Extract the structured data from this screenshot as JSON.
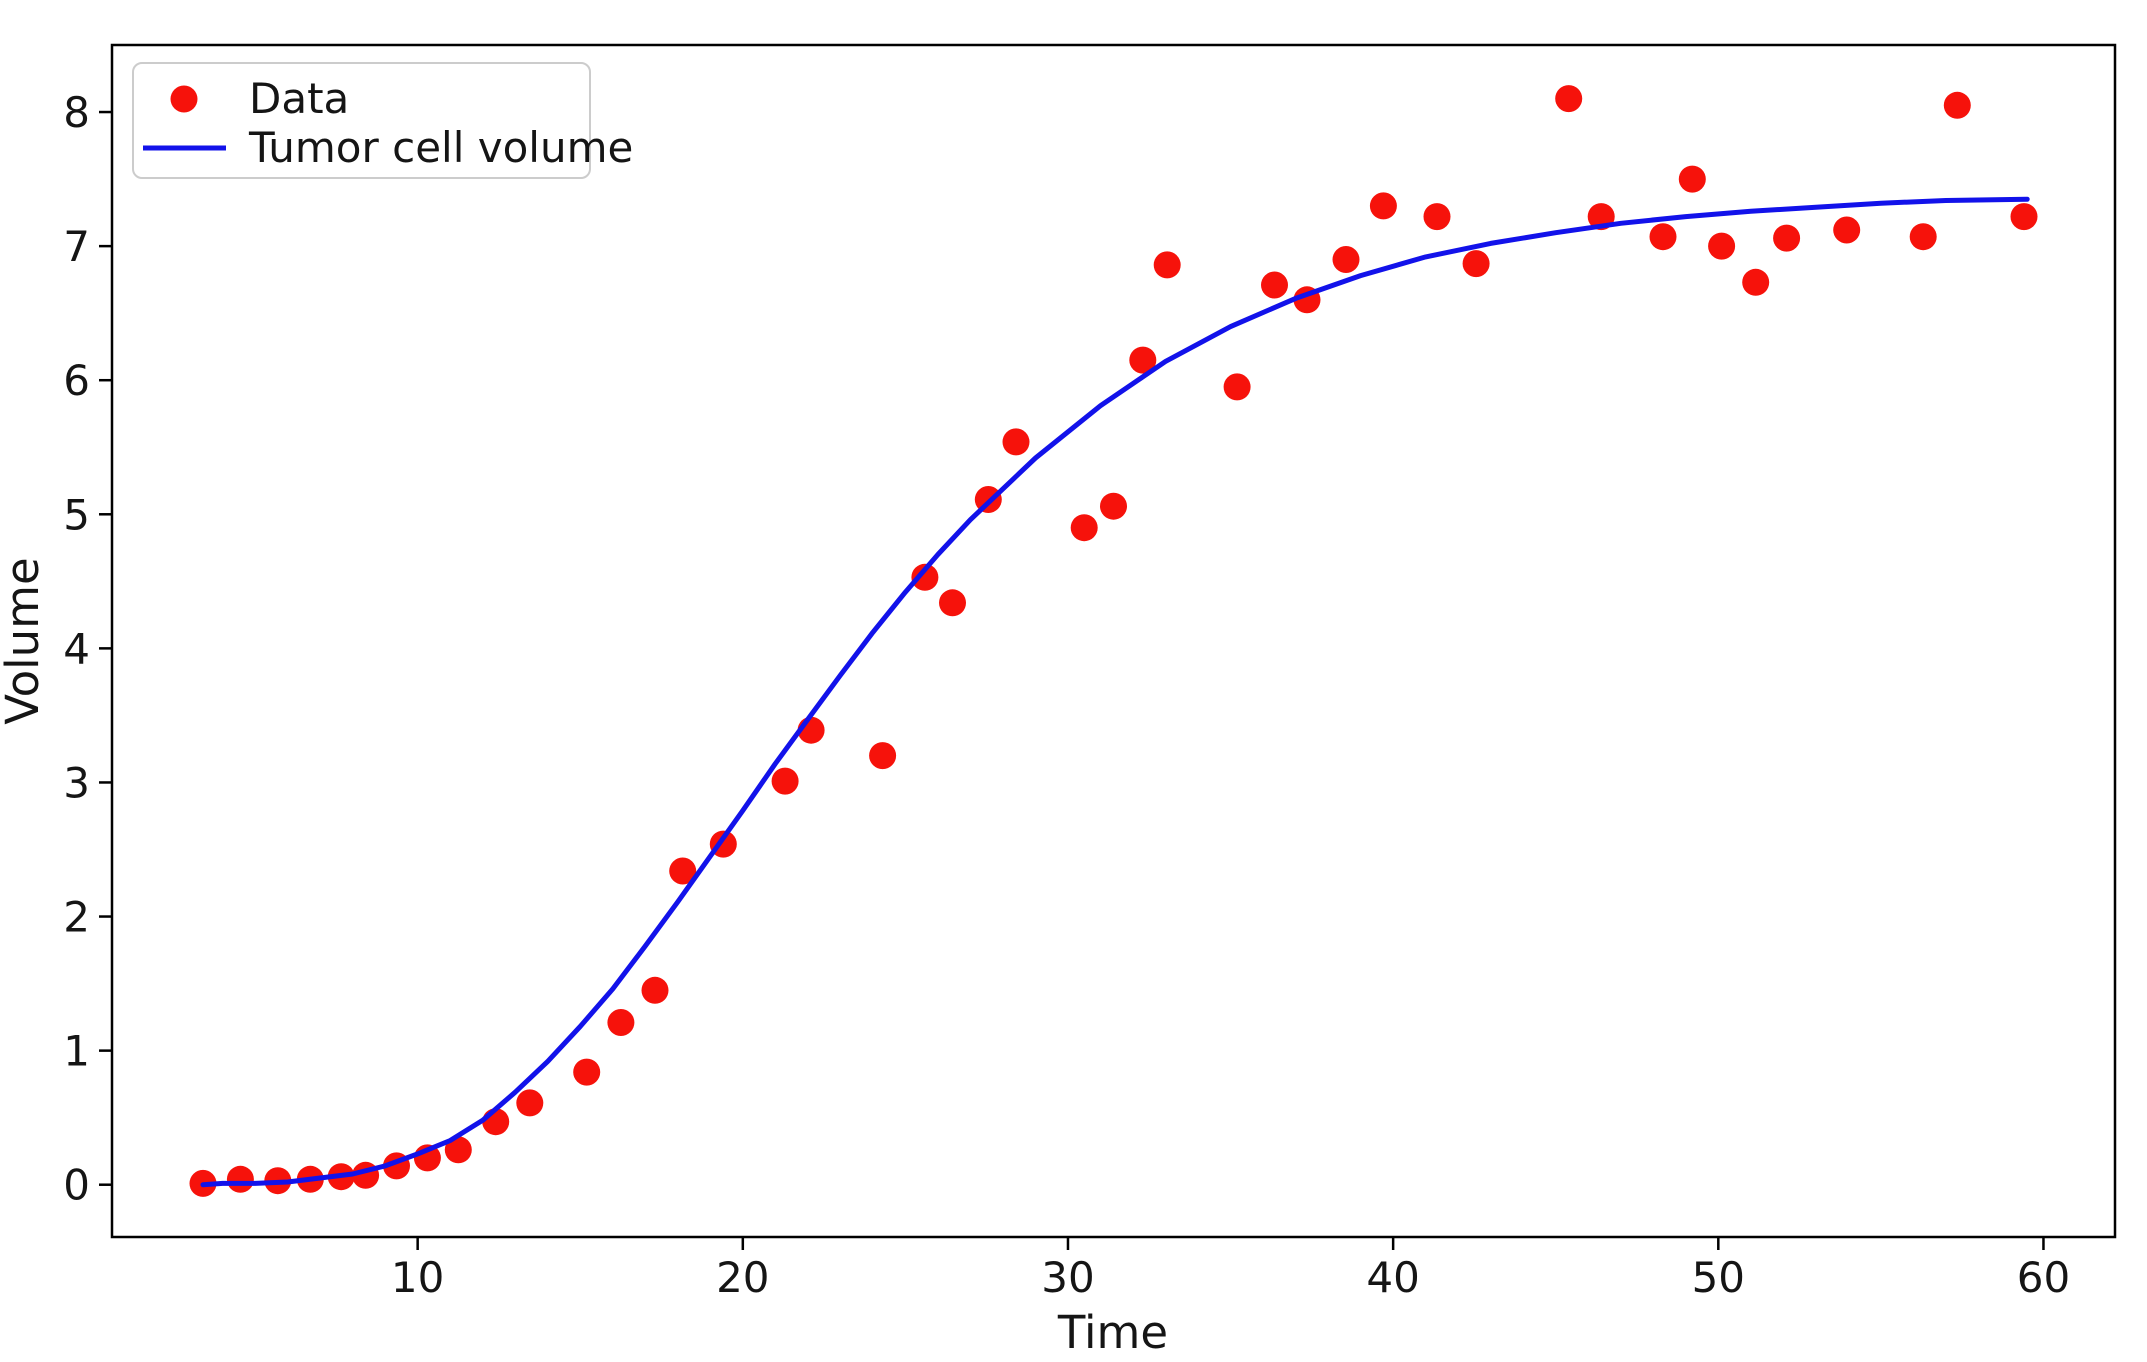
{
  "chart_data": {
    "type": "scatter",
    "title": "",
    "xlabel": "Time",
    "ylabel": "Volume",
    "xlim": [
      0.6,
      62.2
    ],
    "ylim": [
      -0.39,
      8.5
    ],
    "xticks": [
      10,
      20,
      30,
      40,
      50,
      60
    ],
    "yticks": [
      0,
      1,
      2,
      3,
      4,
      5,
      6,
      7,
      8
    ],
    "grid": false,
    "legend_position": "upper left",
    "series": [
      {
        "name": "Data",
        "type": "scatter",
        "color": "#f6120b",
        "points": [
          [
            3.4,
            0.01
          ],
          [
            4.55,
            0.04
          ],
          [
            5.7,
            0.03
          ],
          [
            6.7,
            0.04
          ],
          [
            7.65,
            0.06
          ],
          [
            8.4,
            0.07
          ],
          [
            9.35,
            0.14
          ],
          [
            10.3,
            0.2
          ],
          [
            11.25,
            0.26
          ],
          [
            12.4,
            0.47
          ],
          [
            13.45,
            0.61
          ],
          [
            15.2,
            0.84
          ],
          [
            16.25,
            1.21
          ],
          [
            17.3,
            1.45
          ],
          [
            18.15,
            2.34
          ],
          [
            19.4,
            2.54
          ],
          [
            21.3,
            3.01
          ],
          [
            22.1,
            3.39
          ],
          [
            24.3,
            3.2
          ],
          [
            25.6,
            4.53
          ],
          [
            26.45,
            4.34
          ],
          [
            27.55,
            5.11
          ],
          [
            28.4,
            5.54
          ],
          [
            30.5,
            4.9
          ],
          [
            31.4,
            5.06
          ],
          [
            32.3,
            6.15
          ],
          [
            33.05,
            6.86
          ],
          [
            35.2,
            5.95
          ],
          [
            36.35,
            6.71
          ],
          [
            37.35,
            6.6
          ],
          [
            38.55,
            6.9
          ],
          [
            39.7,
            7.3
          ],
          [
            41.35,
            7.22
          ],
          [
            42.55,
            6.87
          ],
          [
            45.4,
            8.1
          ],
          [
            46.4,
            7.22
          ],
          [
            48.3,
            7.07
          ],
          [
            49.2,
            7.5
          ],
          [
            50.1,
            7.0
          ],
          [
            51.15,
            6.73
          ],
          [
            52.1,
            7.06
          ],
          [
            53.95,
            7.12
          ],
          [
            56.3,
            7.07
          ],
          [
            57.35,
            8.05
          ],
          [
            59.4,
            7.22
          ]
        ]
      },
      {
        "name": "Tumor cell volume",
        "type": "line",
        "color": "#1212ea",
        "points": [
          [
            3.4,
            0.0
          ],
          [
            4,
            0.01
          ],
          [
            5,
            0.01
          ],
          [
            6,
            0.02
          ],
          [
            7,
            0.05
          ],
          [
            8,
            0.08
          ],
          [
            9,
            0.14
          ],
          [
            10,
            0.23
          ],
          [
            11,
            0.33
          ],
          [
            12,
            0.48
          ],
          [
            13,
            0.69
          ],
          [
            14,
            0.92
          ],
          [
            15,
            1.18
          ],
          [
            16,
            1.46
          ],
          [
            17,
            1.78
          ],
          [
            18,
            2.11
          ],
          [
            19,
            2.45
          ],
          [
            20,
            2.79
          ],
          [
            21,
            3.14
          ],
          [
            22,
            3.47
          ],
          [
            23,
            3.8
          ],
          [
            24,
            4.12
          ],
          [
            25,
            4.42
          ],
          [
            26,
            4.7
          ],
          [
            27,
            4.96
          ],
          [
            29,
            5.42
          ],
          [
            31,
            5.81
          ],
          [
            33,
            6.14
          ],
          [
            35,
            6.4
          ],
          [
            37,
            6.61
          ],
          [
            39,
            6.78
          ],
          [
            41,
            6.92
          ],
          [
            43,
            7.02
          ],
          [
            45,
            7.1
          ],
          [
            47,
            7.17
          ],
          [
            49,
            7.22
          ],
          [
            51,
            7.26
          ],
          [
            53,
            7.29
          ],
          [
            55,
            7.32
          ],
          [
            57,
            7.34
          ],
          [
            59.5,
            7.35
          ]
        ]
      }
    ]
  },
  "legend": {
    "entries": [
      {
        "label": "Data"
      },
      {
        "label": "Tumor cell volume"
      }
    ]
  }
}
